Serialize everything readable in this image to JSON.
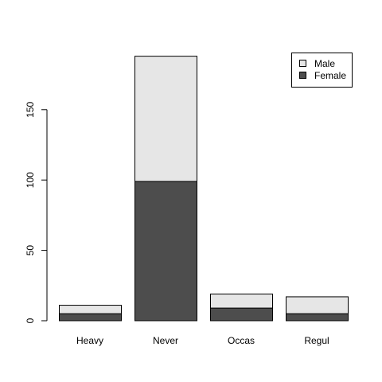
{
  "chart_data": {
    "type": "bar",
    "stacked": true,
    "categories": [
      "Heavy",
      "Never",
      "Occas",
      "Regul"
    ],
    "series": [
      {
        "name": "Female",
        "values": [
          5,
          99,
          9,
          5
        ],
        "color": "#4d4d4d"
      },
      {
        "name": "Male",
        "values": [
          6,
          89,
          10,
          12
        ],
        "color": "#e6e6e6"
      }
    ],
    "legend_order": [
      "Male",
      "Female"
    ],
    "legend_position": "top-right",
    "y_ticks": [
      0,
      50,
      100,
      150
    ],
    "y_tick_labels": [
      "0",
      "50",
      "100",
      "150"
    ],
    "ylim": [
      0,
      195.7
    ],
    "title": "",
    "xlabel": "",
    "ylabel": "",
    "grid": false
  }
}
